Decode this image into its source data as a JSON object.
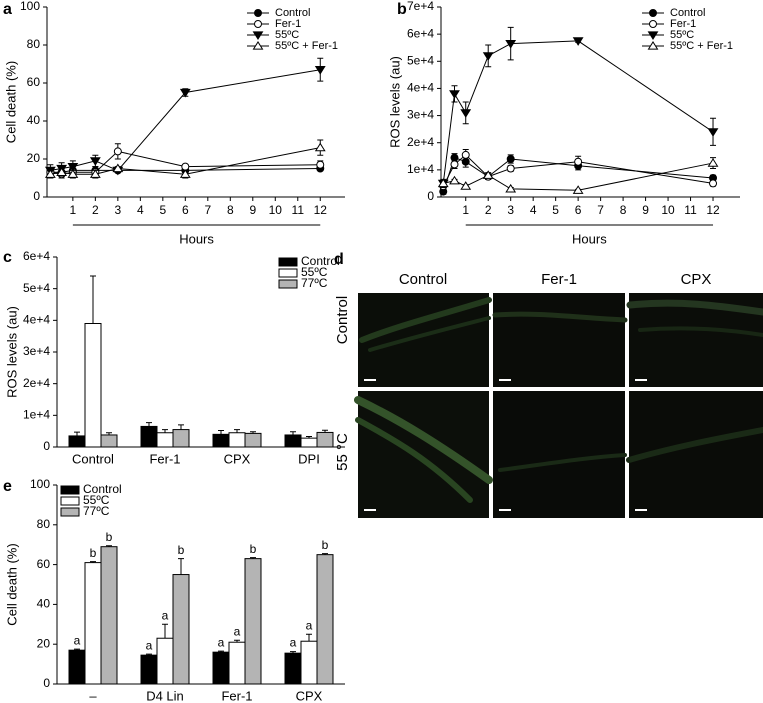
{
  "chart_data": [
    {
      "type": "line",
      "panel": "a",
      "ylabel": "Cell death (%)",
      "xlabel": "Hours",
      "x": [
        0,
        0.5,
        1,
        2,
        3,
        6,
        12
      ],
      "xlim": [
        -0.15,
        13.1
      ],
      "xticks": [
        1,
        2,
        3,
        4,
        5,
        6,
        7,
        8,
        9,
        10,
        11,
        12
      ],
      "ylim": [
        0,
        100
      ],
      "yticks": [
        0,
        20,
        40,
        60,
        80,
        100
      ],
      "legend": "upper right",
      "series": [
        {
          "name": "Control",
          "color": "#000000",
          "marker": "filled-circle",
          "values": [
            13,
            13,
            14,
            14,
            14,
            14,
            15
          ],
          "errors": [
            2,
            2,
            2,
            2,
            1,
            1,
            1
          ]
        },
        {
          "name": "Fer-1",
          "color": "#000000",
          "marker": "open-circle",
          "values": [
            13,
            12,
            13,
            13,
            24,
            16,
            17
          ],
          "errors": [
            2,
            2,
            2,
            2,
            4,
            1,
            2
          ]
        },
        {
          "name": "55ºC",
          "color": "#000000",
          "marker": "filled-triangle-down",
          "values": [
            14,
            15,
            16,
            19,
            14,
            55,
            67
          ],
          "errors": [
            3,
            3,
            3,
            3,
            1,
            2,
            6
          ]
        },
        {
          "name": "55ºC + Fer-1",
          "color": "#000000",
          "marker": "open-triangle-up",
          "values": [
            12,
            13,
            12,
            12,
            15,
            12,
            26
          ],
          "errors": [
            2,
            2,
            2,
            2,
            1,
            2,
            4
          ]
        }
      ]
    },
    {
      "type": "line",
      "panel": "b",
      "ylabel": "ROS levels (au)",
      "xlabel": "Hours",
      "x": [
        0,
        0.5,
        1,
        2,
        3,
        6,
        12
      ],
      "xlim": [
        -0.1,
        13.2
      ],
      "xticks": [
        1,
        2,
        3,
        4,
        5,
        6,
        7,
        8,
        9,
        10,
        11,
        12
      ],
      "ylim": [
        0,
        70000
      ],
      "yticks": [
        0,
        {
          "value": 10000,
          "label": "1e+4"
        },
        {
          "value": 20000,
          "label": "2e+4"
        },
        {
          "value": 30000,
          "label": "3e+4"
        },
        {
          "value": 40000,
          "label": "4e+4"
        },
        {
          "value": 50000,
          "label": "5e+4"
        },
        {
          "value": 60000,
          "label": "6e+4"
        },
        {
          "value": 70000,
          "label": "7e+4"
        }
      ],
      "legend": "upper right",
      "series": [
        {
          "name": "Control",
          "color": "#000000",
          "marker": "filled-circle",
          "values": [
            2000,
            14500,
            13000,
            7500,
            14000,
            11500,
            7000
          ],
          "errors": [
            1000,
            1500,
            2000,
            1000,
            1500,
            1500,
            1000
          ]
        },
        {
          "name": "Fer-1",
          "color": "#000000",
          "marker": "open-circle",
          "values": [
            4000,
            12000,
            15500,
            7500,
            10500,
            13000,
            5000
          ],
          "errors": [
            1000,
            1500,
            2000,
            1000,
            1000,
            2000,
            1000
          ]
        },
        {
          "name": "55ºC",
          "color": "#000000",
          "marker": "filled-triangle-down",
          "values": [
            5000,
            38000,
            31000,
            52000,
            56500,
            57500,
            24000
          ],
          "errors": [
            1500,
            3000,
            4000,
            4000,
            6000,
            500,
            5000
          ]
        },
        {
          "name": "55ºC + Fer-1",
          "color": "#000000",
          "marker": "open-triangle-up",
          "values": [
            5000,
            6000,
            4000,
            8000,
            3000,
            2500,
            12500
          ],
          "errors": [
            1000,
            500,
            500,
            1000,
            500,
            300,
            2000
          ]
        }
      ]
    },
    {
      "type": "bar",
      "panel": "c",
      "ylabel": "ROS levels (au)",
      "categories": [
        "Control",
        "Fer-1",
        "CPX",
        "DPI"
      ],
      "ylim": [
        0,
        60000
      ],
      "yticks": [
        0,
        {
          "value": 10000,
          "label": "1e+4"
        },
        {
          "value": 20000,
          "label": "2e+4"
        },
        {
          "value": 30000,
          "label": "3e+4"
        },
        {
          "value": 40000,
          "label": "4e+4"
        },
        {
          "value": 50000,
          "label": "5e+4"
        },
        {
          "value": 60000,
          "label": "6e+4"
        }
      ],
      "legend": "upper right",
      "series": [
        {
          "name": "Control",
          "color": "#000000",
          "values": [
            3500,
            6500,
            4000,
            3800
          ],
          "errors": [
            1200,
            1200,
            1200,
            1000
          ]
        },
        {
          "name": "55ºC",
          "color": "#ffffff",
          "values": [
            39000,
            4500,
            4500,
            2800
          ],
          "errors": [
            15000,
            1000,
            1000,
            500
          ]
        },
        {
          "name": "77ºC",
          "color": "#b4b4b4",
          "values": [
            3800,
            5500,
            4300,
            4600
          ],
          "errors": [
            700,
            1500,
            500,
            700
          ]
        }
      ]
    },
    {
      "type": "bar",
      "panel": "e",
      "ylabel": "Cell death (%)",
      "categories": [
        "–",
        "D4 Lin",
        "Fer-1",
        "CPX"
      ],
      "ylim": [
        0,
        100
      ],
      "yticks": [
        0,
        20,
        40,
        60,
        80,
        100
      ],
      "legend": "upper left",
      "series": [
        {
          "name": "Control",
          "color": "#000000",
          "values": [
            17,
            14.5,
            16,
            15.5
          ],
          "errors": [
            0.5,
            0.5,
            0.5,
            0.8
          ],
          "labels": [
            "a",
            "a",
            "a",
            "a"
          ]
        },
        {
          "name": "55ºC",
          "color": "#ffffff",
          "values": [
            61,
            23,
            21,
            21.5
          ],
          "errors": [
            0.5,
            7,
            1,
            3.5
          ],
          "labels": [
            "b",
            "a",
            "a",
            "a"
          ]
        },
        {
          "name": "77ºC",
          "color": "#b4b4b4",
          "values": [
            69,
            55,
            63,
            65
          ],
          "errors": [
            0.5,
            8,
            0.5,
            0.5
          ],
          "labels": [
            "b",
            "b",
            "b",
            "b"
          ]
        }
      ]
    }
  ],
  "micrographs": {
    "panel": "d",
    "columns": [
      "Control",
      "Fer-1",
      "CPX"
    ],
    "rows": [
      "Control",
      "55 °C"
    ]
  }
}
